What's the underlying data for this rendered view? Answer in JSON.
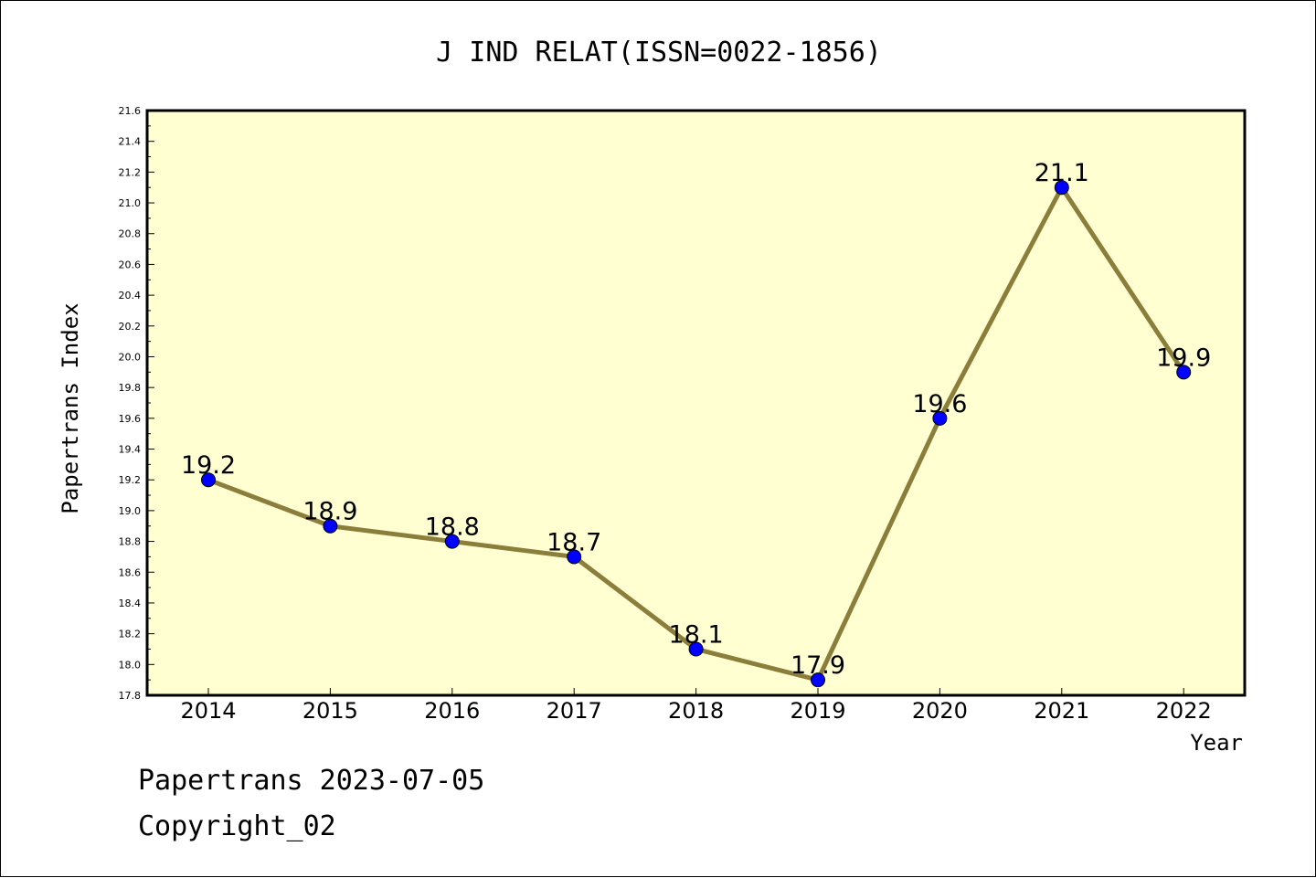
{
  "footer": {
    "line1": "Papertrans 2023-07-05",
    "line2": "Copyright_02"
  },
  "colors": {
    "plot_background": "#ffffd2",
    "line": "#8b7d3a",
    "marker": "#0000ff"
  },
  "chart_data": {
    "type": "line",
    "title": "J IND RELAT(ISSN=0022-1856)",
    "xlabel": "Year",
    "ylabel": "Papertrans Index",
    "categories": [
      "2014",
      "2015",
      "2016",
      "2017",
      "2018",
      "2019",
      "2020",
      "2021",
      "2022"
    ],
    "values": [
      19.2,
      18.9,
      18.8,
      18.7,
      18.1,
      17.9,
      19.6,
      21.1,
      19.9
    ],
    "data_labels": [
      "19.2",
      "18.9",
      "18.8",
      "18.7",
      "18.1",
      "17.9",
      "19.6",
      "21.1",
      "19.9"
    ],
    "ylim": [
      17.8,
      21.6
    ],
    "yticks": [
      "17.8",
      "18.0",
      "18.2",
      "18.4",
      "18.6",
      "18.8",
      "19.0",
      "19.2",
      "19.4",
      "19.6",
      "19.8",
      "20.0",
      "20.2",
      "20.4",
      "20.6",
      "20.8",
      "21.0",
      "21.2",
      "21.4",
      "21.6"
    ],
    "grid": false,
    "legend": "none"
  }
}
